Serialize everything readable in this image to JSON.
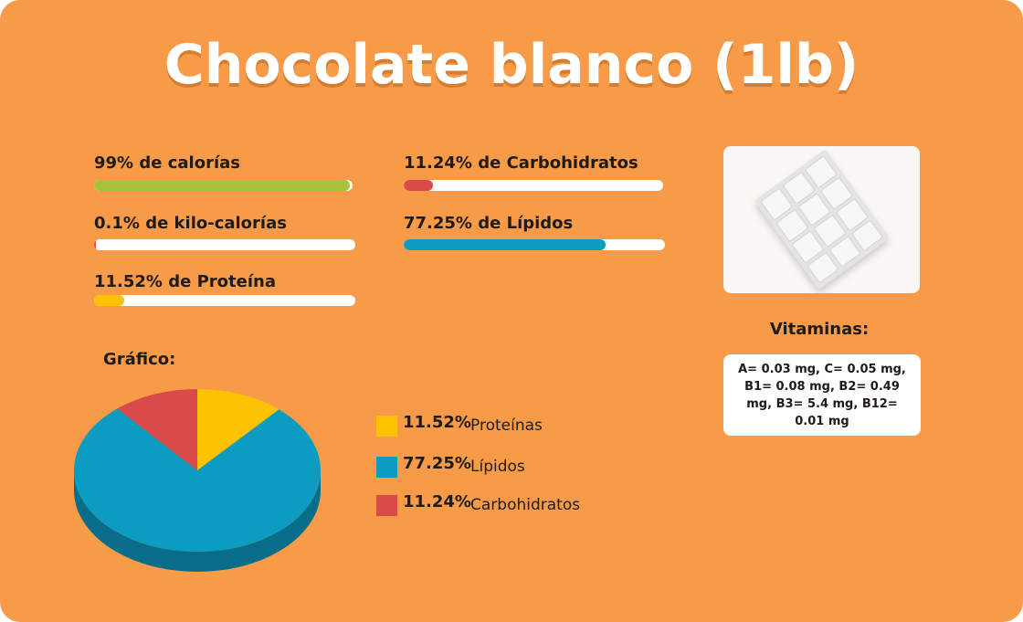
{
  "title": "Chocolate blanco (1lb)",
  "bars": [
    {
      "label": "99% de calorías",
      "value": 99,
      "color": "#a6c13a"
    },
    {
      "label": "0.1% de kilo-calorías",
      "value": 0.1,
      "color": "#d94a4a"
    },
    {
      "label": "11.52% de Proteína",
      "value": 11.52,
      "color": "#fdc300"
    },
    {
      "label": "11.24% de Carbohidratos",
      "value": 11.24,
      "color": "#d94a4a"
    },
    {
      "label": "77.25% de Lípidos",
      "value": 77.25,
      "color": "#0c9cc2"
    }
  ],
  "image": {
    "icon": "white-chocolate-bar-icon"
  },
  "vitamins": {
    "title": "Vitaminas:",
    "text": "A= 0.03 mg, C= 0.05 mg, B1= 0.08 mg, B2= 0.49 mg, B3= 5.4 mg, B12= 0.01 mg"
  },
  "chart_label": "Gráfico:",
  "chart_data": {
    "type": "pie",
    "title": "",
    "series": [
      {
        "name": "Proteínas",
        "value": 11.52,
        "display": "11.52%",
        "color": "#fdc300"
      },
      {
        "name": "Lípidos",
        "value": 77.25,
        "display": "77.25%",
        "color": "#0c9cc2"
      },
      {
        "name": "Carbohidratos",
        "value": 11.24,
        "display": "11.24%",
        "color": "#d94a4a"
      }
    ],
    "legend": "right",
    "style": "3d"
  }
}
